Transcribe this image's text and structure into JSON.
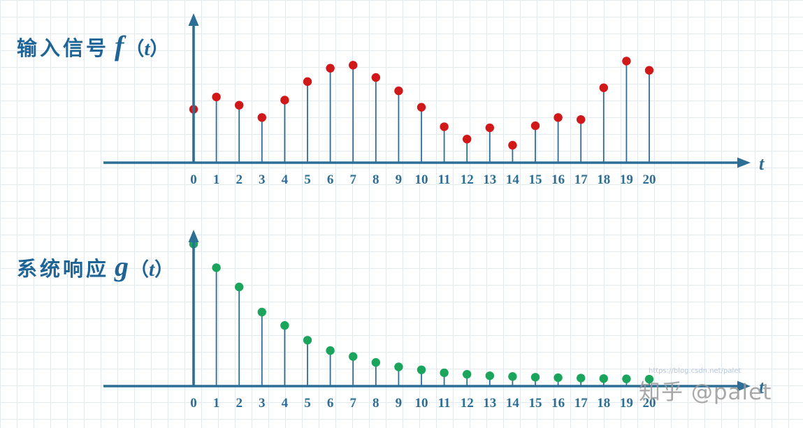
{
  "watermark": {
    "text": "知乎 @palet",
    "url_text": "https://blog.csdn.net/palet"
  },
  "chart_data": [
    {
      "type": "stem",
      "title": "输入信号 f（t）",
      "title_parts": {
        "prefix": "输入信号",
        "symbol": "f",
        "open": "（",
        "var": "t",
        "close": "）"
      },
      "xlabel": "t",
      "ylabel": "",
      "x": [
        0,
        1,
        2,
        3,
        4,
        5,
        6,
        7,
        8,
        9,
        10,
        11,
        12,
        13,
        14,
        15,
        16,
        17,
        18,
        19,
        20
      ],
      "values": [
        0.52,
        0.64,
        0.56,
        0.44,
        0.61,
        0.79,
        0.92,
        0.95,
        0.83,
        0.7,
        0.54,
        0.35,
        0.23,
        0.34,
        0.17,
        0.36,
        0.44,
        0.42,
        0.73,
        0.99,
        0.9
      ],
      "xlim": [
        0,
        20
      ],
      "ylim": [
        0,
        1
      ],
      "grid": true,
      "legend": "none",
      "dot_color": "#d01818",
      "stem_color": "#2d6e96",
      "axis_color": "#2d6e96"
    },
    {
      "type": "stem",
      "title": "系统响应 g（t）",
      "title_parts": {
        "prefix": "系统响应",
        "symbol": "g",
        "open": "（",
        "var": "t",
        "close": "）"
      },
      "xlabel": "t",
      "ylabel": "",
      "x": [
        0,
        1,
        2,
        3,
        4,
        5,
        6,
        7,
        8,
        9,
        10,
        11,
        12,
        13,
        14,
        15,
        16,
        17,
        18,
        19,
        20
      ],
      "values": [
        0.96,
        0.8,
        0.67,
        0.5,
        0.41,
        0.31,
        0.24,
        0.2,
        0.16,
        0.13,
        0.11,
        0.09,
        0.08,
        0.07,
        0.065,
        0.06,
        0.057,
        0.054,
        0.051,
        0.049,
        0.047
      ],
      "xlim": [
        0,
        20
      ],
      "ylim": [
        0,
        1
      ],
      "grid": true,
      "legend": "none",
      "dot_color": "#1ba55c",
      "stem_color": "#2d6e96",
      "axis_color": "#2d6e96"
    }
  ]
}
